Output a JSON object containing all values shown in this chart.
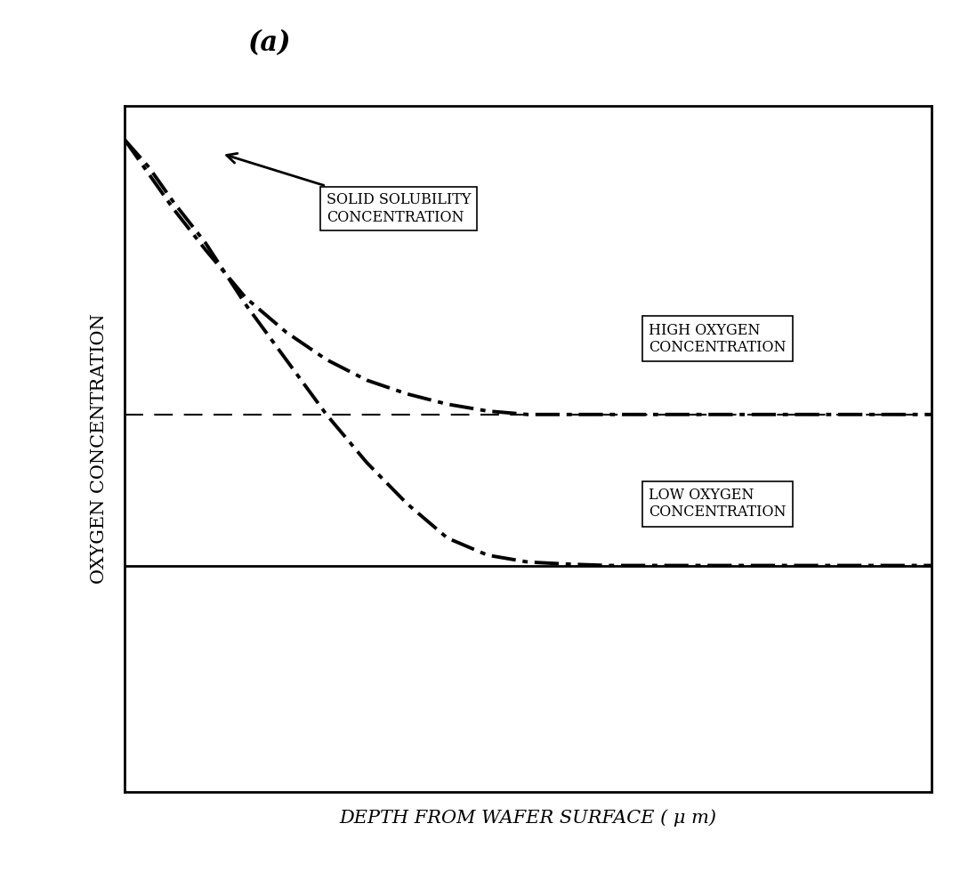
{
  "title_label": "(a)",
  "xlabel": "DEPTH FROM WAFER SURFACE ( μ m)",
  "ylabel": "OXYGEN CONCENTRATION",
  "background_color": "#ffffff",
  "plot_bg_color": "#ffffff",
  "text_color": "#000000",
  "ylabel_fontsize": 15,
  "xlabel_fontsize": 15,
  "title_fontsize": 22,
  "annotation_fontsize": 11.5,
  "x_range": [
    0,
    10
  ],
  "y_range": [
    0,
    10
  ],
  "dashed_line_y": 5.5,
  "horizontal_line_y": 3.3,
  "curve1_x": [
    0.0,
    0.3,
    0.6,
    1.0,
    1.5,
    2.0,
    2.5,
    3.0,
    3.5,
    4.0,
    4.5,
    5.0,
    5.5,
    6.0,
    6.5,
    7.0,
    7.5,
    8.0,
    8.5,
    9.0,
    9.5,
    10.0
  ],
  "curve1_y": [
    9.5,
    9.0,
    8.5,
    7.9,
    7.2,
    6.7,
    6.3,
    6.0,
    5.8,
    5.65,
    5.55,
    5.5,
    5.5,
    5.5,
    5.5,
    5.5,
    5.5,
    5.5,
    5.5,
    5.5,
    5.5,
    5.5
  ],
  "curve2_x": [
    0.0,
    0.3,
    0.6,
    1.0,
    1.5,
    2.0,
    2.5,
    3.0,
    3.5,
    4.0,
    4.5,
    5.0,
    5.5,
    6.0,
    6.5,
    7.0,
    7.5,
    8.0,
    8.5,
    9.0,
    9.5,
    10.0
  ],
  "curve2_y": [
    9.5,
    9.1,
    8.6,
    8.0,
    7.1,
    6.3,
    5.5,
    4.8,
    4.2,
    3.7,
    3.45,
    3.35,
    3.32,
    3.3,
    3.3,
    3.3,
    3.3,
    3.3,
    3.3,
    3.3,
    3.3,
    3.3
  ],
  "ss_text": "SOLID SOLUBILITY\nCONCENTRATION",
  "high_o_text": "HIGH OXYGEN\nCONCENTRATION",
  "low_o_text": "LOW OXYGEN\nCONCENTRATION"
}
